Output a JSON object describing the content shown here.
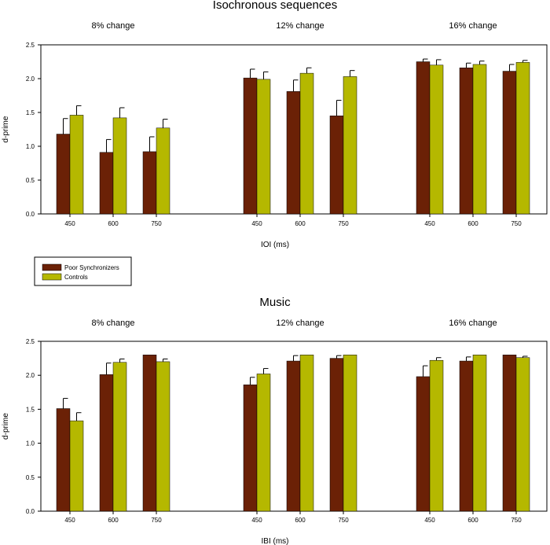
{
  "chart_data": [
    {
      "type": "bar",
      "title": "Isochronous sequences",
      "xlabel": "IOI (ms)",
      "ylabel": "d-prime",
      "ylim": [
        0,
        2.5
      ],
      "yticks": [
        "0.0",
        "0.5",
        "1.0",
        "1.5",
        "2.0",
        "2.5"
      ],
      "grid": false,
      "groups": [
        {
          "title": "8% change",
          "categories": [
            "450",
            "600",
            "750"
          ],
          "series": [
            {
              "name": "Poor Synchronizers",
              "values": [
                1.18,
                0.91,
                0.92
              ],
              "errors": [
                0.23,
                0.19,
                0.22
              ]
            },
            {
              "name": "Controls",
              "values": [
                1.46,
                1.42,
                1.27
              ],
              "errors": [
                0.14,
                0.15,
                0.13
              ]
            }
          ]
        },
        {
          "title": "12% change",
          "categories": [
            "450",
            "600",
            "750"
          ],
          "series": [
            {
              "name": "Poor Synchronizers",
              "values": [
                2.01,
                1.81,
                1.45
              ],
              "errors": [
                0.13,
                0.17,
                0.23
              ]
            },
            {
              "name": "Controls",
              "values": [
                1.99,
                2.08,
                2.03
              ],
              "errors": [
                0.11,
                0.08,
                0.09
              ]
            }
          ]
        },
        {
          "title": "16% change",
          "categories": [
            "450",
            "600",
            "750"
          ],
          "series": [
            {
              "name": "Poor Synchronizers",
              "values": [
                2.25,
                2.16,
                2.11
              ],
              "errors": [
                0.04,
                0.07,
                0.1
              ]
            },
            {
              "name": "Controls",
              "values": [
                2.2,
                2.21,
                2.24
              ],
              "errors": [
                0.08,
                0.05,
                0.03
              ]
            }
          ]
        }
      ]
    },
    {
      "type": "bar",
      "title": "Music",
      "xlabel": "IBI (ms)",
      "ylabel": "d-prime",
      "ylim": [
        0,
        2.5
      ],
      "yticks": [
        "0.0",
        "0.5",
        "1.0",
        "1.5",
        "2.0",
        "2.5"
      ],
      "grid": false,
      "groups": [
        {
          "title": "8% change",
          "categories": [
            "450",
            "600",
            "750"
          ],
          "series": [
            {
              "name": "Poor Synchronizers",
              "values": [
                1.51,
                2.01,
                2.3
              ],
              "errors": [
                0.15,
                0.17,
                0
              ]
            },
            {
              "name": "Controls",
              "values": [
                1.33,
                2.19,
                2.2
              ],
              "errors": [
                0.12,
                0.05,
                0.04
              ]
            }
          ]
        },
        {
          "title": "12% change",
          "categories": [
            "450",
            "600",
            "750"
          ],
          "series": [
            {
              "name": "Poor Synchronizers",
              "values": [
                1.86,
                2.21,
                2.25
              ],
              "errors": [
                0.11,
                0.08,
                0.04
              ]
            },
            {
              "name": "Controls",
              "values": [
                2.02,
                2.3,
                2.3
              ],
              "errors": [
                0.08,
                0,
                0
              ]
            }
          ]
        },
        {
          "title": "16% change",
          "categories": [
            "450",
            "600",
            "750"
          ],
          "series": [
            {
              "name": "Poor Synchronizers",
              "values": [
                1.98,
                2.21,
                2.3
              ],
              "errors": [
                0.16,
                0.06,
                0
              ]
            },
            {
              "name": "Controls",
              "values": [
                2.22,
                2.3,
                2.26
              ],
              "errors": [
                0.04,
                0,
                0.02
              ]
            }
          ]
        }
      ]
    }
  ],
  "legend": {
    "placement": "between panels, left",
    "items": [
      {
        "label": "Poor Synchronizers",
        "color": "#6b2106"
      },
      {
        "label": "Controls",
        "color": "#b5b800"
      }
    ]
  },
  "colors": {
    "poor": "#6b2106",
    "controls": "#b5b800"
  }
}
